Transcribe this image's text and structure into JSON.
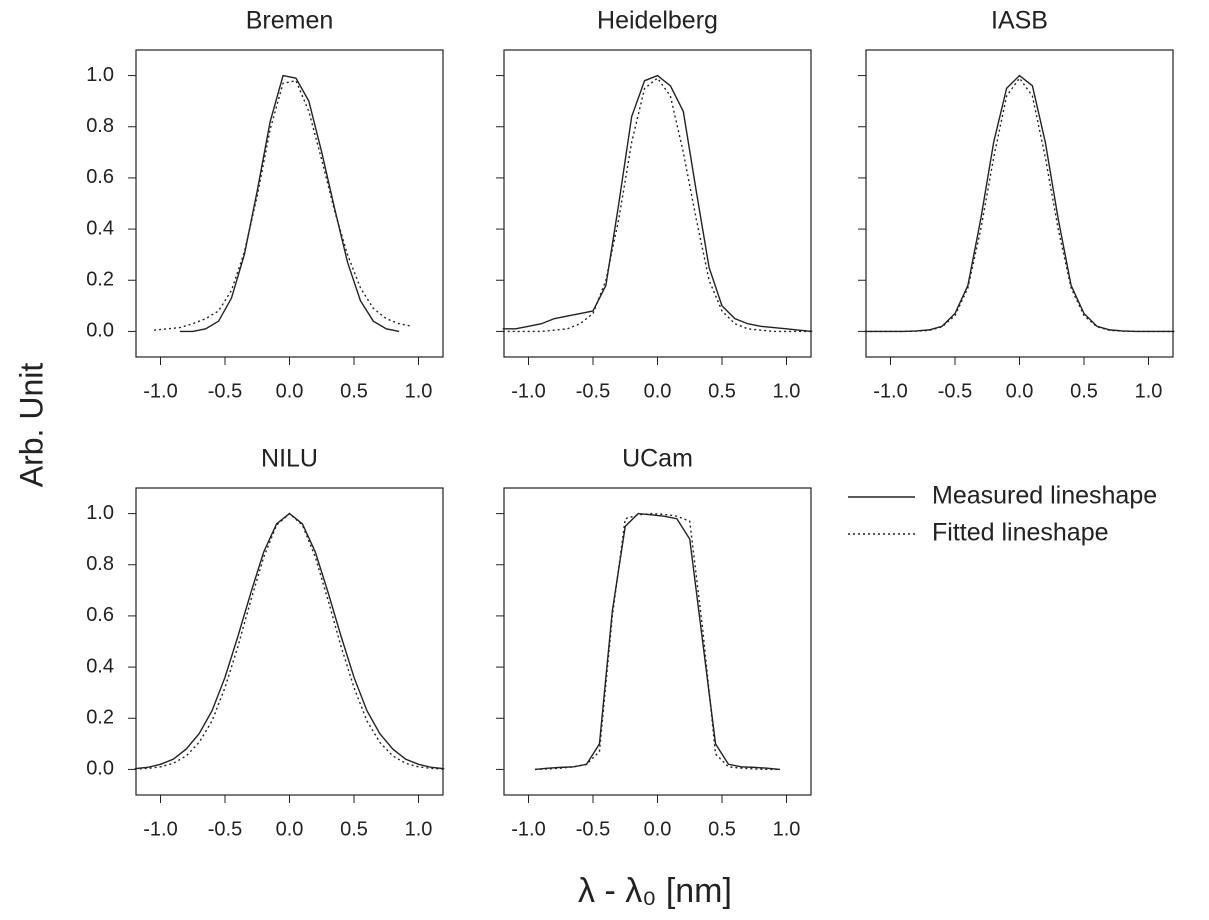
{
  "figure": {
    "xlabel": "λ - λ₀ [nm]",
    "ylabel": "Arb. Unit"
  },
  "chart_data": [
    {
      "type": "line",
      "title": "Bremen",
      "x": [
        -1.05,
        -0.95,
        -0.85,
        -0.75,
        -0.65,
        -0.55,
        -0.45,
        -0.35,
        -0.25,
        -0.15,
        -0.05,
        0.05,
        0.15,
        0.25,
        0.35,
        0.45,
        0.55,
        0.65,
        0.75,
        0.85,
        0.95
      ],
      "series": [
        {
          "name": "Measured lineshape",
          "color": "#222222",
          "style": "solid",
          "values": [
            null,
            null,
            0.0,
            0.0,
            0.01,
            0.04,
            0.13,
            0.3,
            0.55,
            0.82,
            1.0,
            0.99,
            0.9,
            0.7,
            0.48,
            0.27,
            0.12,
            0.04,
            0.01,
            0.0,
            null
          ]
        },
        {
          "name": "Fitted lineshape",
          "color": "#222222",
          "style": "dotted",
          "values": [
            0.005,
            0.01,
            0.015,
            0.03,
            0.05,
            0.08,
            0.16,
            0.31,
            0.53,
            0.79,
            0.97,
            0.98,
            0.86,
            0.67,
            0.47,
            0.3,
            0.17,
            0.09,
            0.05,
            0.03,
            0.02
          ]
        }
      ],
      "xlim": [
        -1.19,
        1.19
      ],
      "ylim": [
        -0.1,
        1.1
      ],
      "xticks": [
        {
          "value": -1,
          "label": "-1.0"
        },
        {
          "value": -0.5,
          "label": "-0.5"
        },
        {
          "value": 0,
          "label": "0.0"
        },
        {
          "value": 0.5,
          "label": "0.5"
        },
        {
          "value": 1,
          "label": "1.0"
        }
      ],
      "yticks": [
        {
          "value": 0,
          "label": "0.0"
        },
        {
          "value": 0.2,
          "label": "0.2"
        },
        {
          "value": 0.4,
          "label": "0.4"
        },
        {
          "value": 0.6,
          "label": "0.6"
        },
        {
          "value": 0.8,
          "label": "0.8"
        },
        {
          "value": 1,
          "label": "1.0"
        }
      ]
    },
    {
      "type": "line",
      "title": "Heidelberg",
      "x": [
        -1.2,
        -1.1,
        -1.0,
        -0.9,
        -0.8,
        -0.7,
        -0.6,
        -0.5,
        -0.4,
        -0.3,
        -0.2,
        -0.1,
        0,
        0.1,
        0.2,
        0.3,
        0.4,
        0.5,
        0.6,
        0.7,
        0.8,
        0.9,
        1.0,
        1.1,
        1.2
      ],
      "series": [
        {
          "color": "#222222",
          "style": "solid",
          "values": [
            0.01,
            0.01,
            0.02,
            0.03,
            0.05,
            0.06,
            0.07,
            0.08,
            0.18,
            0.5,
            0.84,
            0.98,
            1.0,
            0.96,
            0.86,
            0.55,
            0.25,
            0.1,
            0.05,
            0.03,
            0.02,
            0.015,
            0.01,
            0.005,
            0.0
          ]
        },
        {
          "color": "#222222",
          "style": "dotted",
          "values": [
            0.0,
            0.0,
            0.0,
            0.0,
            0.005,
            0.01,
            0.03,
            0.07,
            0.2,
            0.44,
            0.74,
            0.95,
            0.99,
            0.92,
            0.7,
            0.44,
            0.2,
            0.08,
            0.03,
            0.01,
            0.005,
            0.0,
            0.0,
            0.0,
            0.0
          ]
        }
      ],
      "xlim": [
        -1.19,
        1.19
      ],
      "ylim": [
        -0.1,
        1.1
      ],
      "xticks": [
        {
          "value": -1,
          "label": "-1.0"
        },
        {
          "value": -0.5,
          "label": "-0.5"
        },
        {
          "value": 0,
          "label": "0.0"
        },
        {
          "value": 0.5,
          "label": "0.5"
        },
        {
          "value": 1,
          "label": "1.0"
        }
      ],
      "yticks": [
        0,
        0.2,
        0.4,
        0.6,
        0.8,
        1
      ]
    },
    {
      "type": "line",
      "title": "IASB",
      "x": [
        -1.2,
        -1.1,
        -1.0,
        -0.9,
        -0.8,
        -0.7,
        -0.6,
        -0.5,
        -0.4,
        -0.3,
        -0.2,
        -0.1,
        0,
        0.1,
        0.2,
        0.3,
        0.4,
        0.5,
        0.6,
        0.7,
        0.8,
        0.9,
        1.0,
        1.1,
        1.2
      ],
      "series": [
        {
          "color": "#222222",
          "style": "solid",
          "values": [
            0.0,
            0.0,
            0.0,
            0.0,
            0.002,
            0.006,
            0.02,
            0.07,
            0.18,
            0.44,
            0.74,
            0.95,
            1.0,
            0.96,
            0.74,
            0.44,
            0.18,
            0.07,
            0.02,
            0.006,
            0.002,
            0.0,
            0.0,
            0.0,
            0.0
          ]
        },
        {
          "color": "#222222",
          "style": "dotted",
          "values": [
            0.0,
            0.0,
            0.0,
            0.0,
            0.001,
            0.004,
            0.018,
            0.062,
            0.17,
            0.4,
            0.68,
            0.92,
            0.99,
            0.92,
            0.68,
            0.4,
            0.17,
            0.062,
            0.018,
            0.004,
            0.001,
            0.0,
            0.0,
            0.0,
            0.0
          ]
        }
      ],
      "xlim": [
        -1.19,
        1.19
      ],
      "ylim": [
        -0.1,
        1.1
      ],
      "xticks": [
        {
          "value": -1,
          "label": "-1.0"
        },
        {
          "value": -0.5,
          "label": "-0.5"
        },
        {
          "value": 0,
          "label": "0.0"
        },
        {
          "value": 0.5,
          "label": "0.5"
        },
        {
          "value": 1,
          "label": "1.0"
        }
      ],
      "yticks": [
        0,
        0.2,
        0.4,
        0.6,
        0.8,
        1
      ]
    },
    {
      "type": "line",
      "title": "NILU",
      "x": [
        -1.2,
        -1.1,
        -1.0,
        -0.9,
        -0.8,
        -0.7,
        -0.6,
        -0.5,
        -0.4,
        -0.3,
        -0.2,
        -0.1,
        0,
        0.1,
        0.2,
        0.3,
        0.4,
        0.5,
        0.6,
        0.7,
        0.8,
        0.9,
        1.0,
        1.1,
        1.2
      ],
      "series": [
        {
          "color": "#222222",
          "style": "solid",
          "values": [
            0.003,
            0.008,
            0.02,
            0.04,
            0.08,
            0.14,
            0.23,
            0.36,
            0.52,
            0.69,
            0.85,
            0.96,
            1.0,
            0.96,
            0.85,
            0.69,
            0.52,
            0.36,
            0.23,
            0.14,
            0.08,
            0.04,
            0.02,
            0.008,
            0.003
          ]
        },
        {
          "color": "#222222",
          "style": "dotted",
          "values": [
            0.001,
            0.004,
            0.01,
            0.024,
            0.053,
            0.106,
            0.19,
            0.32,
            0.48,
            0.66,
            0.83,
            0.955,
            1.0,
            0.955,
            0.83,
            0.66,
            0.48,
            0.32,
            0.19,
            0.106,
            0.053,
            0.024,
            0.01,
            0.004,
            0.001
          ]
        }
      ],
      "xlim": [
        -1.19,
        1.19
      ],
      "ylim": [
        -0.1,
        1.1
      ],
      "xticks": [
        {
          "value": -1,
          "label": "-1.0"
        },
        {
          "value": -0.5,
          "label": "-0.5"
        },
        {
          "value": 0,
          "label": "0.0"
        },
        {
          "value": 0.5,
          "label": "0.5"
        },
        {
          "value": 1,
          "label": "1.0"
        }
      ],
      "yticks": [
        {
          "value": 0,
          "label": "0.0"
        },
        {
          "value": 0.2,
          "label": "0.2"
        },
        {
          "value": 0.4,
          "label": "0.4"
        },
        {
          "value": 0.6,
          "label": "0.6"
        },
        {
          "value": 0.8,
          "label": "0.8"
        },
        {
          "value": 1,
          "label": "1.0"
        }
      ]
    },
    {
      "type": "line",
      "title": "UCam",
      "x": [
        -0.95,
        -0.85,
        -0.75,
        -0.65,
        -0.55,
        -0.45,
        -0.35,
        -0.25,
        -0.15,
        -0.05,
        0.05,
        0.15,
        0.25,
        0.35,
        0.45,
        0.55,
        0.65,
        0.75,
        0.85,
        0.95
      ],
      "series": [
        {
          "color": "#222222",
          "style": "solid",
          "values": [
            0.0,
            0.005,
            0.008,
            0.01,
            0.02,
            0.1,
            0.62,
            0.95,
            1.0,
            0.995,
            0.99,
            0.98,
            0.9,
            0.5,
            0.1,
            0.02,
            0.01,
            0.008,
            0.005,
            0.0
          ]
        },
        {
          "color": "#222222",
          "style": "dotted",
          "values": [
            0.0,
            0.002,
            0.005,
            0.01,
            0.02,
            0.07,
            0.6,
            0.98,
            0.995,
            1.0,
            0.997,
            0.99,
            0.97,
            0.55,
            0.06,
            0.01,
            0.005,
            0.002,
            0.0,
            0.0
          ]
        }
      ],
      "xlim": [
        -1.19,
        1.19
      ],
      "ylim": [
        -0.1,
        1.1
      ],
      "xticks": [
        {
          "value": -1,
          "label": "-1.0"
        },
        {
          "value": -0.5,
          "label": "-0.5"
        },
        {
          "value": 0,
          "label": "0.0"
        },
        {
          "value": 0.5,
          "label": "0.5"
        },
        {
          "value": 1,
          "label": "1.0"
        }
      ],
      "yticks": [
        0,
        0.2,
        0.4,
        0.6,
        0.8,
        1
      ]
    }
  ]
}
